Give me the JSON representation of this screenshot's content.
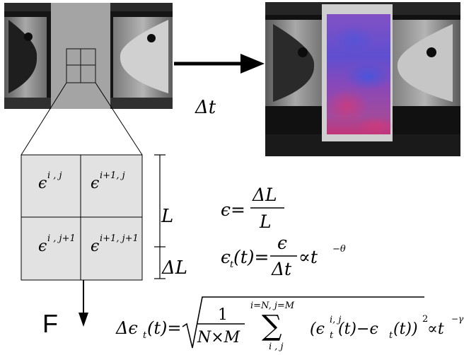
{
  "labels": {
    "delta_t": "Δt",
    "length": "L",
    "delta_length": "ΔL",
    "force": "F"
  },
  "cells": [
    {
      "base": "ϵ",
      "sup": "i , j"
    },
    {
      "base": "ϵ",
      "sup": "i+1, j"
    },
    {
      "base": "ϵ",
      "sup": "i , j+1"
    },
    {
      "base": "ϵ",
      "sup": "i+1, j+1"
    }
  ],
  "equations": {
    "strain": {
      "lhs": "ϵ=",
      "num": "ΔL",
      "den": "L"
    },
    "rate": {
      "lhs_base": "ϵ",
      "lhs_sub": "t",
      "lhs_arg": "(t)=",
      "num": "ϵ",
      "den": "Δt",
      "rhs": "∝t",
      "rhs_exp": "−θ"
    },
    "fluct": {
      "lhs": "Δϵ",
      "lhs_sub": "t",
      "lhs_arg": "(t)=",
      "frac_num": "1",
      "frac_den": "N×M",
      "sum_top": "i=N, j=M",
      "sum_sym": "∑",
      "sum_bot": "i , j",
      "term_open": "(ϵ",
      "term_sup": "i, j",
      "term_sub": "t",
      "term_mid": "(t)−ϵ",
      "term_sub2": "t",
      "term_close": "(t))",
      "sq": "2",
      "rhs": "∝t",
      "rhs_exp": "−γ"
    }
  },
  "colors": {
    "photo_dark": "#111111",
    "photo_metal": "#8a8a8a",
    "specimen_gray": "#a6a6a6",
    "specimen_strain": "#7a55c8",
    "strain_hot": "#c2367a",
    "grid_fill": "#e2e2e2",
    "ink": "#000000"
  }
}
